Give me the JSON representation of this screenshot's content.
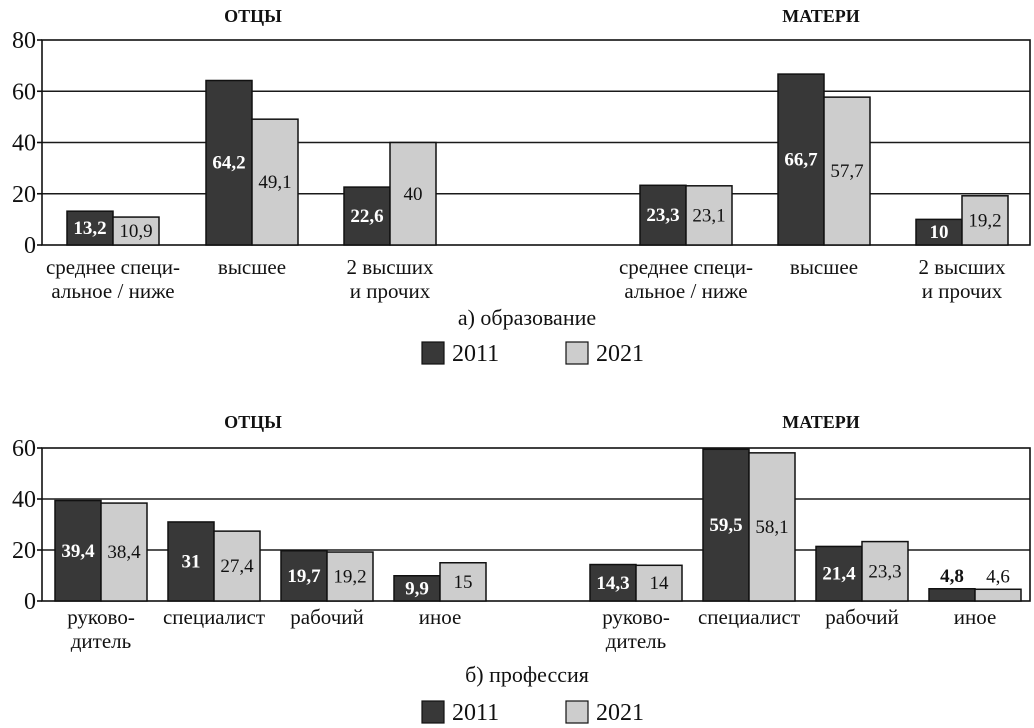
{
  "colors": {
    "2011": "#383838",
    "2021": "#cdcdcd"
  },
  "chart_data": [
    {
      "type": "bar",
      "caption": "а) образование",
      "ylim": [
        0,
        80
      ],
      "yticks": [
        "0",
        "20",
        "40",
        "60",
        "80"
      ],
      "grid": true,
      "legend": "bottom",
      "groups": [
        {
          "title": "ОТЦЫ",
          "categories": [
            [
              "среднее специ-",
              "альное / ниже"
            ],
            [
              "высшее"
            ],
            [
              "2 высших",
              "и прочих"
            ]
          ],
          "series": [
            {
              "name": "2011",
              "values": [
                13.2,
                64.2,
                22.6
              ],
              "labels": [
                "13,2",
                "64,2",
                "22,6"
              ]
            },
            {
              "name": "2021",
              "values": [
                10.9,
                49.1,
                40
              ],
              "labels": [
                "10,9",
                "49,1",
                "40"
              ]
            }
          ]
        },
        {
          "title": "МАТЕРИ",
          "categories": [
            [
              "среднее специ-",
              "альное / ниже"
            ],
            [
              "высшее"
            ],
            [
              "2 высших",
              "и прочих"
            ]
          ],
          "series": [
            {
              "name": "2011",
              "values": [
                23.3,
                66.7,
                10
              ],
              "labels": [
                "23,3",
                "66,7",
                "10"
              ]
            },
            {
              "name": "2021",
              "values": [
                23.1,
                57.7,
                19.2
              ],
              "labels": [
                "23,1",
                "57,7",
                "19,2"
              ]
            }
          ]
        }
      ]
    },
    {
      "type": "bar",
      "caption": "б) профессия",
      "ylim": [
        0,
        60
      ],
      "yticks": [
        "0",
        "20",
        "40",
        "60"
      ],
      "grid": true,
      "legend": "bottom",
      "groups": [
        {
          "title": "ОТЦЫ",
          "categories": [
            [
              "руково-",
              "дитель"
            ],
            [
              "специалист"
            ],
            [
              "рабочий"
            ],
            [
              "иное"
            ]
          ],
          "series": [
            {
              "name": "2011",
              "values": [
                39.4,
                31,
                19.7,
                9.9
              ],
              "labels": [
                "39,4",
                "31",
                "19,7",
                "9,9"
              ]
            },
            {
              "name": "2021",
              "values": [
                38.4,
                27.4,
                19.2,
                15
              ],
              "labels": [
                "38,4",
                "27,4",
                "19,2",
                "15"
              ]
            }
          ]
        },
        {
          "title": "МАТЕРИ",
          "categories": [
            [
              "руково-",
              "дитель"
            ],
            [
              "специалист"
            ],
            [
              "рабочий"
            ],
            [
              "иное"
            ]
          ],
          "series": [
            {
              "name": "2011",
              "values": [
                14.3,
                59.5,
                21.4,
                4.8
              ],
              "labels": [
                "14,3",
                "59,5",
                "21,4",
                "4,8"
              ]
            },
            {
              "name": "2021",
              "values": [
                14,
                58.1,
                23.3,
                4.6
              ],
              "labels": [
                "14",
                "58,1",
                "23,3",
                "4,6"
              ]
            }
          ]
        }
      ]
    }
  ]
}
